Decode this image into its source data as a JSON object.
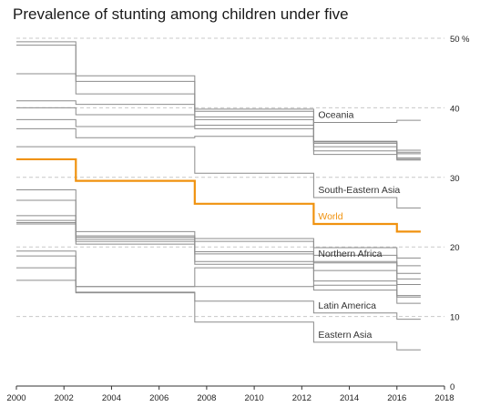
{
  "title": "Prevalence of stunting among children under five",
  "chart_data": {
    "type": "line",
    "step": true,
    "title": "Prevalence of stunting among children under five",
    "xlim": [
      2000,
      2018
    ],
    "ylim": [
      0,
      50
    ],
    "y_unit": "%",
    "xticks": [
      "2000",
      "2002",
      "2004",
      "2006",
      "2008",
      "2010",
      "2012",
      "2014",
      "2016",
      "2018"
    ],
    "yticks": [
      "0",
      "10",
      "20",
      "30",
      "40",
      "50"
    ],
    "grid": "horizontal dashed at 10, 20, 30, 40, 50",
    "x_breaks": [
      2000,
      2002.5,
      2007.5,
      2012.5,
      2016,
      2017
    ],
    "highlight_color": "#f0920f",
    "base_color": "#8c8c8c",
    "series": [
      {
        "name": "World",
        "highlight": true,
        "values": [
          32.6,
          29.5,
          26.2,
          23.3,
          22.2
        ]
      },
      {
        "name": "Oceania",
        "values": [
          38.3,
          37.3,
          37.5,
          37.9,
          38.2
        ]
      },
      {
        "name": "South-Eastern Asia",
        "values": [
          34.4,
          34.4,
          30.6,
          27.1,
          25.6
        ]
      },
      {
        "name": "Northern Africa",
        "values": [
          23.5,
          21.6,
          19.3,
          17.9,
          17.3
        ]
      },
      {
        "name": "Latin America",
        "values": [
          15.2,
          13.4,
          12.2,
          10.5,
          9.6
        ]
      },
      {
        "name": "Eastern Asia",
        "values": [
          18.7,
          13.5,
          9.2,
          6.3,
          5.2
        ]
      },
      {
        "values": [
          49.5,
          44.6,
          39.8,
          35.1,
          32.5
        ]
      },
      {
        "values": [
          49.0,
          43.8,
          39.5,
          34.9,
          32.8
        ]
      },
      {
        "values": [
          44.9,
          42.0,
          38.7,
          34.4,
          33.4
        ]
      },
      {
        "values": [
          41.0,
          40.5,
          38.3,
          33.8,
          33.6
        ]
      },
      {
        "values": [
          40.0,
          39.0,
          37.0,
          35.2,
          33.9
        ]
      },
      {
        "values": [
          37.0,
          35.7,
          35.9,
          33.3,
          32.6
        ]
      },
      {
        "values": [
          28.2,
          22.2,
          21.2,
          19.9,
          18.4
        ]
      },
      {
        "values": [
          26.7,
          21.4,
          20.8,
          18.8,
          16.2
        ]
      },
      {
        "values": [
          24.5,
          20.8,
          19.0,
          17.7,
          15.4
        ]
      },
      {
        "values": [
          23.8,
          21.1,
          17.9,
          16.6,
          14.6
        ]
      },
      {
        "values": [
          23.3,
          20.4,
          17.5,
          15.1,
          12.8
        ]
      },
      {
        "values": [
          19.4,
          14.3,
          14.3,
          14.5,
          11.9
        ]
      },
      {
        "values": [
          17.0,
          14.3,
          17.0,
          13.8,
          13.0
        ]
      }
    ]
  }
}
